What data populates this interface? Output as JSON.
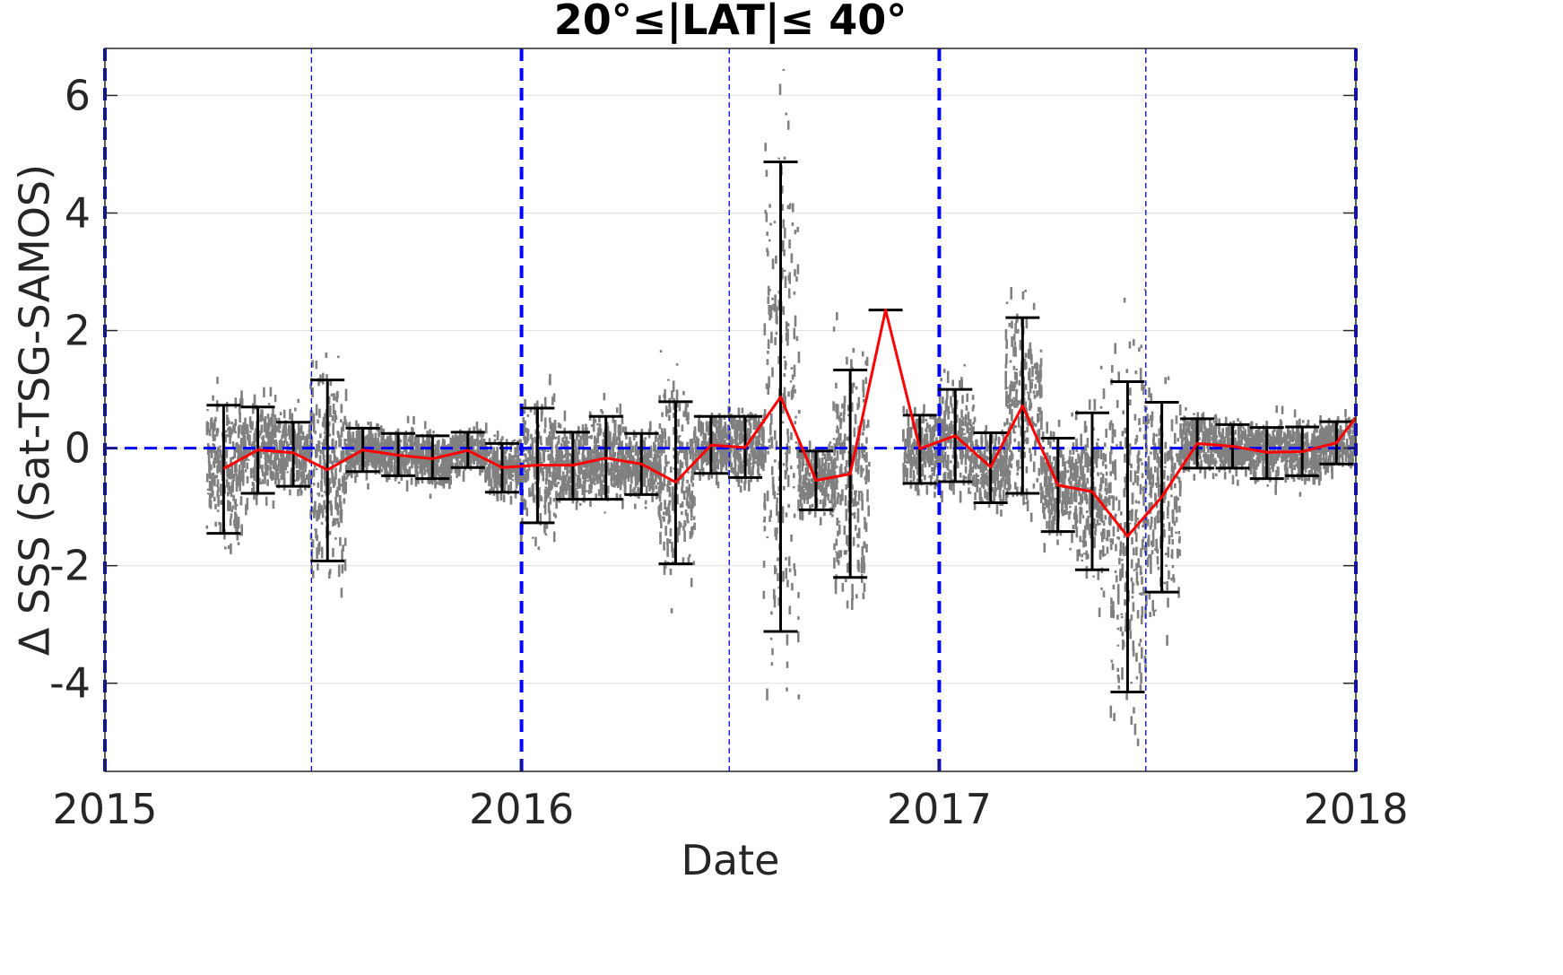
{
  "chart_data": {
    "type": "scatter",
    "title": "20°≤|LAT|≤ 40°",
    "xlabel": "Date",
    "ylabel": "Δ SSS (Sat-TSG-SAMOS)",
    "xlim": [
      "2015-01-01",
      "2018-01-01"
    ],
    "ylim": [
      -5.5,
      6.8
    ],
    "x_tick_labels": [
      "2015",
      "2016",
      "2017",
      "2018"
    ],
    "y_tick_labels": [
      "6",
      "4",
      "2",
      "0",
      "-2",
      "-4"
    ],
    "y_ticks": [
      6,
      4,
      2,
      0,
      -2,
      -4
    ],
    "grid": "horizontal",
    "colors": {
      "points": "#808080",
      "mean_line": "#ff0000",
      "error_bars": "#000000",
      "reference_lines": "#0000ff"
    },
    "reference_lines": {
      "zero_line": 0,
      "year_boundaries": [
        "2015-01-01",
        "2016-01-01",
        "2017-01-01",
        "2018-01-01"
      ],
      "half_year_lines": [
        "2015-07-01",
        "2016-07-01",
        "2017-07-01"
      ]
    },
    "binned_stats": [
      {
        "date": "2015-04-15",
        "mean": -0.35,
        "lower": -1.45,
        "upper": 0.73
      },
      {
        "date": "2015-05-15",
        "mean": -0.03,
        "lower": -0.77,
        "upper": 0.7
      },
      {
        "date": "2015-06-15",
        "mean": -0.08,
        "lower": -0.65,
        "upper": 0.44
      },
      {
        "date": "2015-07-15",
        "mean": -0.37,
        "lower": -1.92,
        "upper": 1.16
      },
      {
        "date": "2015-08-15",
        "mean": -0.03,
        "lower": -0.4,
        "upper": 0.34
      },
      {
        "date": "2015-09-15",
        "mean": -0.12,
        "lower": -0.47,
        "upper": 0.25
      },
      {
        "date": "2015-10-15",
        "mean": -0.18,
        "lower": -0.52,
        "upper": 0.21
      },
      {
        "date": "2015-11-15",
        "mean": -0.04,
        "lower": -0.33,
        "upper": 0.27
      },
      {
        "date": "2015-12-15",
        "mean": -0.33,
        "lower": -0.75,
        "upper": 0.08
      },
      {
        "date": "2016-01-15",
        "mean": -0.29,
        "lower": -1.27,
        "upper": 0.68
      },
      {
        "date": "2016-02-15",
        "mean": -0.29,
        "lower": -0.87,
        "upper": 0.27
      },
      {
        "date": "2016-03-15",
        "mean": -0.17,
        "lower": -0.87,
        "upper": 0.54
      },
      {
        "date": "2016-04-15",
        "mean": -0.27,
        "lower": -0.79,
        "upper": 0.25
      },
      {
        "date": "2016-05-15",
        "mean": -0.58,
        "lower": -1.97,
        "upper": 0.79
      },
      {
        "date": "2016-06-15",
        "mean": 0.05,
        "lower": -0.43,
        "upper": 0.54
      },
      {
        "date": "2016-07-15",
        "mean": 0.01,
        "lower": -0.5,
        "upper": 0.54
      },
      {
        "date": "2016-08-15",
        "mean": 0.87,
        "lower": -3.12,
        "upper": 4.87
      },
      {
        "date": "2016-09-15",
        "mean": -0.55,
        "lower": -1.05,
        "upper": -0.05
      },
      {
        "date": "2016-10-15",
        "mean": -0.44,
        "lower": -2.2,
        "upper": 1.33
      },
      {
        "date": "2016-11-15",
        "mean": 2.35,
        "lower": 2.35,
        "upper": 2.35
      },
      {
        "date": "2016-12-15",
        "mean": -0.01,
        "lower": -0.6,
        "upper": 0.56
      },
      {
        "date": "2017-01-15",
        "mean": 0.21,
        "lower": -0.57,
        "upper": 1.0
      },
      {
        "date": "2017-02-15",
        "mean": -0.32,
        "lower": -0.93,
        "upper": 0.26
      },
      {
        "date": "2017-03-15",
        "mean": 0.72,
        "lower": -0.77,
        "upper": 2.22
      },
      {
        "date": "2017-04-15",
        "mean": -0.63,
        "lower": -1.42,
        "upper": 0.17
      },
      {
        "date": "2017-05-15",
        "mean": -0.74,
        "lower": -2.07,
        "upper": 0.6
      },
      {
        "date": "2017-06-15",
        "mean": -1.5,
        "lower": -4.15,
        "upper": 1.13
      },
      {
        "date": "2017-07-15",
        "mean": -0.83,
        "lower": -2.45,
        "upper": 0.78
      },
      {
        "date": "2017-08-15",
        "mean": 0.08,
        "lower": -0.34,
        "upper": 0.5
      },
      {
        "date": "2017-09-15",
        "mean": 0.03,
        "lower": -0.34,
        "upper": 0.4
      },
      {
        "date": "2017-10-15",
        "mean": -0.07,
        "lower": -0.52,
        "upper": 0.35
      },
      {
        "date": "2017-11-15",
        "mean": -0.06,
        "lower": -0.47,
        "upper": 0.36
      },
      {
        "date": "2017-12-15",
        "mean": 0.09,
        "lower": -0.27,
        "upper": 0.45
      },
      {
        "date": "2018-01-01",
        "mean": 0.52,
        "lower": 0.52,
        "upper": 0.52
      }
    ]
  }
}
